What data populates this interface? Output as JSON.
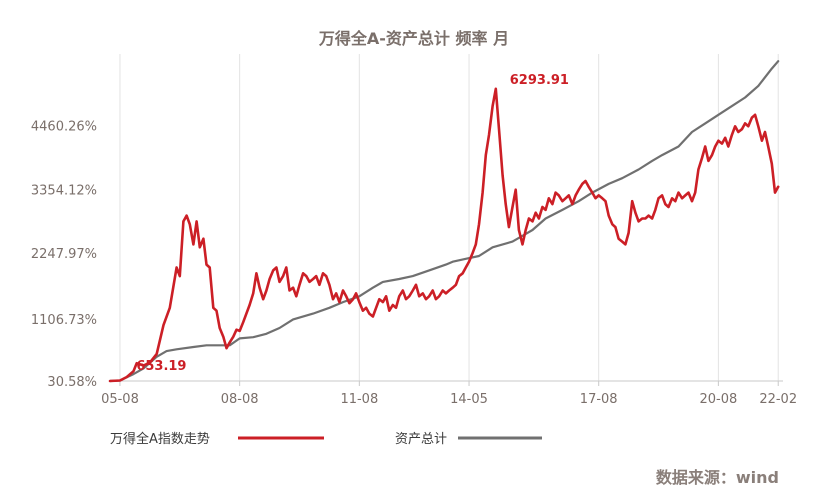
{
  "chart_data": {
    "type": "line",
    "title": "万得全A-资产总计 频率 月",
    "xlabel": "",
    "ylabel": "",
    "y_ticks": [
      "30.58%",
      "1106.73%",
      "2247.97%",
      "3354.12%",
      "4460.26%"
    ],
    "y_tick_values": [
      30.58,
      1106.73,
      2247.97,
      3354.12,
      4460.26
    ],
    "ylim": [
      30.58,
      5600
    ],
    "x_ticks": [
      "05-08",
      "08-08",
      "11-08",
      "14-05",
      "17-08",
      "20-08",
      "22-02"
    ],
    "x_tick_values": [
      2005.58,
      2008.58,
      2011.58,
      2014.33,
      2017.58,
      2020.58,
      2022.08
    ],
    "xlim": [
      2005.33,
      2022.2
    ],
    "grid": "vertical",
    "series": [
      {
        "name": "万得全A指数走势",
        "color": "#cc1f26",
        "points": [
          [
            2005.33,
            30.6
          ],
          [
            2005.58,
            40
          ],
          [
            2005.75,
            100
          ],
          [
            2005.92,
            200
          ],
          [
            2006.0,
            340
          ],
          [
            2006.17,
            300
          ],
          [
            2006.33,
            350
          ],
          [
            2006.5,
            500
          ],
          [
            2006.67,
            1000
          ],
          [
            2006.83,
            1300
          ],
          [
            2007.0,
            2000
          ],
          [
            2007.08,
            1850
          ],
          [
            2007.17,
            2800
          ],
          [
            2007.25,
            2900
          ],
          [
            2007.33,
            2750
          ],
          [
            2007.42,
            2400
          ],
          [
            2007.5,
            2800
          ],
          [
            2007.58,
            2350
          ],
          [
            2007.67,
            2500
          ],
          [
            2007.75,
            2050
          ],
          [
            2007.83,
            2000
          ],
          [
            2007.92,
            1300
          ],
          [
            2008.0,
            1250
          ],
          [
            2008.08,
            950
          ],
          [
            2008.17,
            800
          ],
          [
            2008.25,
            600
          ],
          [
            2008.33,
            700
          ],
          [
            2008.42,
            800
          ],
          [
            2008.5,
            920
          ],
          [
            2008.58,
            900
          ],
          [
            2008.67,
            1050
          ],
          [
            2008.75,
            1200
          ],
          [
            2008.83,
            1350
          ],
          [
            2008.92,
            1550
          ],
          [
            2009.0,
            1900
          ],
          [
            2009.08,
            1650
          ],
          [
            2009.17,
            1450
          ],
          [
            2009.25,
            1600
          ],
          [
            2009.33,
            1800
          ],
          [
            2009.42,
            1950
          ],
          [
            2009.5,
            2000
          ],
          [
            2009.58,
            1750
          ],
          [
            2009.67,
            1850
          ],
          [
            2009.75,
            2000
          ],
          [
            2009.83,
            1600
          ],
          [
            2009.92,
            1650
          ],
          [
            2010.0,
            1500
          ],
          [
            2010.08,
            1700
          ],
          [
            2010.17,
            1900
          ],
          [
            2010.25,
            1850
          ],
          [
            2010.33,
            1750
          ],
          [
            2010.42,
            1800
          ],
          [
            2010.5,
            1850
          ],
          [
            2010.58,
            1700
          ],
          [
            2010.67,
            1900
          ],
          [
            2010.75,
            1850
          ],
          [
            2010.83,
            1700
          ],
          [
            2010.92,
            1450
          ],
          [
            2011.0,
            1550
          ],
          [
            2011.08,
            1400
          ],
          [
            2011.17,
            1600
          ],
          [
            2011.25,
            1500
          ],
          [
            2011.33,
            1380
          ],
          [
            2011.42,
            1450
          ],
          [
            2011.5,
            1550
          ],
          [
            2011.58,
            1400
          ],
          [
            2011.67,
            1250
          ],
          [
            2011.75,
            1300
          ],
          [
            2011.83,
            1200
          ],
          [
            2011.92,
            1150
          ],
          [
            2012.0,
            1300
          ],
          [
            2012.08,
            1450
          ],
          [
            2012.17,
            1400
          ],
          [
            2012.25,
            1500
          ],
          [
            2012.33,
            1250
          ],
          [
            2012.42,
            1350
          ],
          [
            2012.5,
            1300
          ],
          [
            2012.58,
            1500
          ],
          [
            2012.67,
            1600
          ],
          [
            2012.75,
            1450
          ],
          [
            2012.83,
            1500
          ],
          [
            2012.92,
            1600
          ],
          [
            2013.0,
            1700
          ],
          [
            2013.08,
            1500
          ],
          [
            2013.17,
            1550
          ],
          [
            2013.25,
            1450
          ],
          [
            2013.33,
            1500
          ],
          [
            2013.42,
            1600
          ],
          [
            2013.5,
            1450
          ],
          [
            2013.58,
            1500
          ],
          [
            2013.67,
            1600
          ],
          [
            2013.75,
            1550
          ],
          [
            2013.83,
            1600
          ],
          [
            2013.92,
            1650
          ],
          [
            2014.0,
            1700
          ],
          [
            2014.08,
            1850
          ],
          [
            2014.17,
            1900
          ],
          [
            2014.25,
            2000
          ],
          [
            2014.33,
            2100
          ],
          [
            2014.42,
            2250
          ],
          [
            2014.5,
            2400
          ],
          [
            2014.58,
            2750
          ],
          [
            2014.67,
            3300
          ],
          [
            2014.75,
            3950
          ],
          [
            2014.83,
            4300
          ],
          [
            2014.92,
            4800
          ],
          [
            2015.0,
            5100
          ],
          [
            2015.08,
            4400
          ],
          [
            2015.17,
            3600
          ],
          [
            2015.25,
            3100
          ],
          [
            2015.33,
            2700
          ],
          [
            2015.42,
            3050
          ],
          [
            2015.5,
            3350
          ],
          [
            2015.58,
            2650
          ],
          [
            2015.67,
            2400
          ],
          [
            2015.75,
            2650
          ],
          [
            2015.83,
            2850
          ],
          [
            2015.92,
            2800
          ],
          [
            2016.0,
            2950
          ],
          [
            2016.08,
            2850
          ],
          [
            2016.17,
            3050
          ],
          [
            2016.25,
            3000
          ],
          [
            2016.33,
            3200
          ],
          [
            2016.42,
            3100
          ],
          [
            2016.5,
            3300
          ],
          [
            2016.58,
            3250
          ],
          [
            2016.67,
            3150
          ],
          [
            2016.75,
            3200
          ],
          [
            2016.83,
            3250
          ],
          [
            2016.92,
            3100
          ],
          [
            2017.0,
            3250
          ],
          [
            2017.08,
            3350
          ],
          [
            2017.17,
            3450
          ],
          [
            2017.25,
            3500
          ],
          [
            2017.33,
            3400
          ],
          [
            2017.42,
            3300
          ],
          [
            2017.5,
            3200
          ],
          [
            2017.58,
            3250
          ],
          [
            2017.67,
            3200
          ],
          [
            2017.75,
            3150
          ],
          [
            2017.83,
            2900
          ],
          [
            2017.92,
            2750
          ],
          [
            2018.0,
            2700
          ],
          [
            2018.08,
            2500
          ],
          [
            2018.17,
            2450
          ],
          [
            2018.25,
            2400
          ],
          [
            2018.33,
            2600
          ],
          [
            2018.42,
            3150
          ],
          [
            2018.5,
            2950
          ],
          [
            2018.58,
            2800
          ],
          [
            2018.67,
            2850
          ],
          [
            2018.75,
            2850
          ],
          [
            2018.83,
            2900
          ],
          [
            2018.92,
            2850
          ],
          [
            2019.0,
            3000
          ],
          [
            2019.08,
            3200
          ],
          [
            2019.17,
            3250
          ],
          [
            2019.25,
            3100
          ],
          [
            2019.33,
            3050
          ],
          [
            2019.42,
            3200
          ],
          [
            2019.5,
            3150
          ],
          [
            2019.58,
            3300
          ],
          [
            2019.67,
            3200
          ],
          [
            2019.75,
            3250
          ],
          [
            2019.83,
            3300
          ],
          [
            2019.92,
            3150
          ],
          [
            2020.0,
            3300
          ],
          [
            2020.08,
            3700
          ],
          [
            2020.17,
            3900
          ],
          [
            2020.25,
            4100
          ],
          [
            2020.33,
            3850
          ],
          [
            2020.42,
            3950
          ],
          [
            2020.5,
            4100
          ],
          [
            2020.58,
            4200
          ],
          [
            2020.67,
            4150
          ],
          [
            2020.75,
            4250
          ],
          [
            2020.83,
            4100
          ],
          [
            2020.92,
            4300
          ],
          [
            2021.0,
            4450
          ],
          [
            2021.08,
            4350
          ],
          [
            2021.17,
            4400
          ],
          [
            2021.25,
            4500
          ],
          [
            2021.33,
            4450
          ],
          [
            2021.42,
            4600
          ],
          [
            2021.5,
            4650
          ],
          [
            2021.58,
            4450
          ],
          [
            2021.67,
            4200
          ],
          [
            2021.75,
            4350
          ],
          [
            2021.83,
            4100
          ],
          [
            2021.92,
            3800
          ],
          [
            2022.0,
            3300
          ],
          [
            2022.08,
            3400
          ]
        ]
      },
      {
        "name": "资产总计",
        "color": "#707070",
        "points": [
          [
            2005.33,
            30.6
          ],
          [
            2005.58,
            40
          ],
          [
            2005.92,
            150
          ],
          [
            2006.17,
            250
          ],
          [
            2006.5,
            450
          ],
          [
            2006.75,
            550
          ],
          [
            2007.0,
            580
          ],
          [
            2007.42,
            620
          ],
          [
            2007.75,
            650
          ],
          [
            2008.33,
            650
          ],
          [
            2008.58,
            770
          ],
          [
            2008.92,
            790
          ],
          [
            2009.25,
            850
          ],
          [
            2009.58,
            950
          ],
          [
            2009.92,
            1100
          ],
          [
            2010.42,
            1200
          ],
          [
            2010.83,
            1300
          ],
          [
            2011.17,
            1400
          ],
          [
            2011.58,
            1500
          ],
          [
            2011.92,
            1650
          ],
          [
            2012.17,
            1750
          ],
          [
            2012.58,
            1800
          ],
          [
            2012.92,
            1850
          ],
          [
            2013.33,
            1950
          ],
          [
            2013.75,
            2050
          ],
          [
            2013.92,
            2100
          ],
          [
            2014.25,
            2150
          ],
          [
            2014.58,
            2200
          ],
          [
            2014.92,
            2350
          ],
          [
            2015.42,
            2450
          ],
          [
            2015.67,
            2550
          ],
          [
            2015.92,
            2650
          ],
          [
            2016.25,
            2850
          ],
          [
            2016.67,
            3000
          ],
          [
            2017.08,
            3150
          ],
          [
            2017.42,
            3300
          ],
          [
            2017.83,
            3450
          ],
          [
            2018.17,
            3550
          ],
          [
            2018.58,
            3700
          ],
          [
            2018.92,
            3850
          ],
          [
            2019.17,
            3950
          ],
          [
            2019.58,
            4100
          ],
          [
            2019.92,
            4350
          ],
          [
            2020.25,
            4500
          ],
          [
            2020.58,
            4650
          ],
          [
            2020.92,
            4800
          ],
          [
            2021.25,
            4950
          ],
          [
            2021.58,
            5150
          ],
          [
            2021.92,
            5450
          ],
          [
            2022.08,
            5580
          ]
        ]
      }
    ],
    "annotations": [
      {
        "text": "6293.91",
        "x": 2015.0,
        "y": 5100
      },
      {
        "text": "653.19",
        "x": 2008.25,
        "y": 600
      }
    ],
    "legend_position": "bottom-left"
  },
  "source_text": "数据来源：wind"
}
